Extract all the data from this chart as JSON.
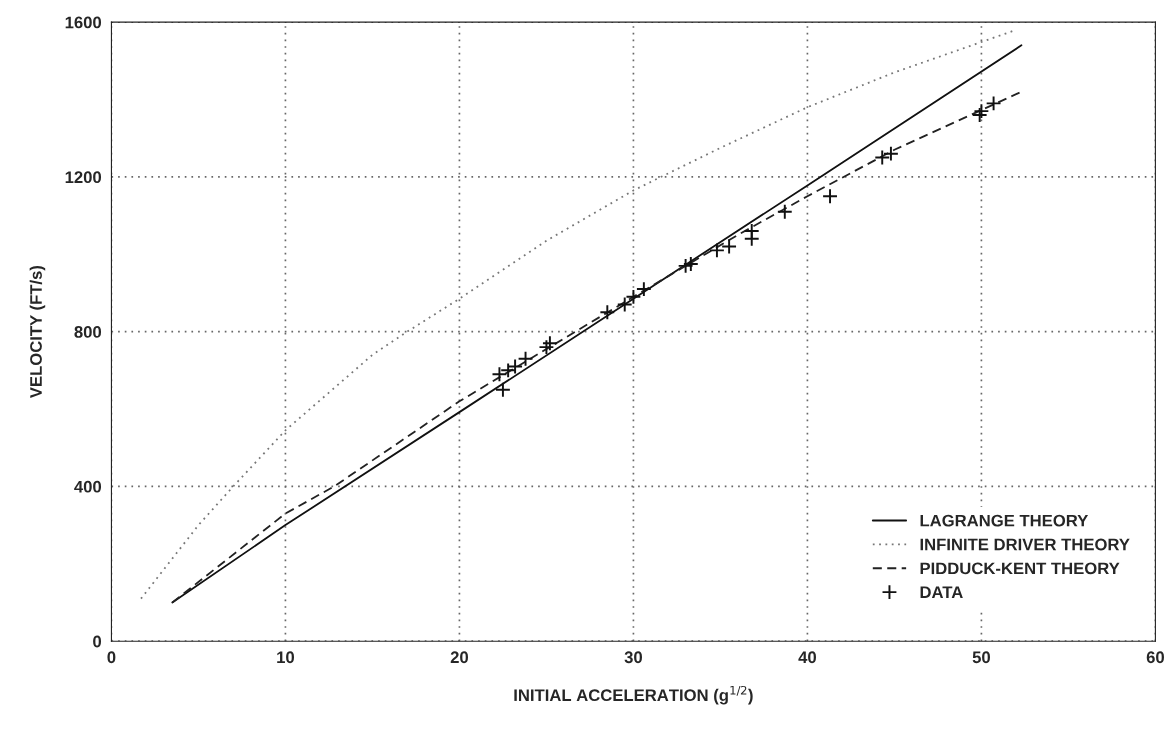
{
  "chart_data": {
    "type": "line",
    "xlabel": "INITIAL ACCELERATION (g$^{1/2}$)",
    "ylabel": "VELOCITY (FT/s)",
    "xlim": [
      0,
      60
    ],
    "xticks": [
      0,
      10,
      20,
      30,
      40,
      50,
      60
    ],
    "ylim": [
      0,
      1600
    ],
    "yticks": [
      0,
      400,
      800,
      1200,
      1600
    ],
    "grid": true,
    "legend": "bottom right",
    "series": [
      {
        "name": "LAGRANGE THEORY",
        "line_style": "solid",
        "color": "#111111",
        "x": [
          3.5,
          10,
          20,
          30,
          40,
          52.3
        ],
        "values": [
          100,
          300,
          592,
          885,
          1178,
          1540
        ]
      },
      {
        "name": "INFINITE DRIVER THEORY",
        "line_style": "dotted",
        "color": "#777777",
        "x": [
          1.7,
          5,
          7,
          10,
          15,
          17,
          20,
          25,
          30,
          35,
          40,
          45,
          52
        ],
        "values": [
          110,
          300,
          400,
          545,
          740,
          800,
          885,
          1035,
          1165,
          1275,
          1380,
          1470,
          1580
        ]
      },
      {
        "name": "PIDDUCK-KENT THEORY",
        "line_style": "dashed",
        "color": "#222222",
        "x": [
          3.5,
          10,
          12.8,
          20,
          30,
          36,
          40,
          45,
          52.3
        ],
        "values": [
          100,
          330,
          400,
          620,
          890,
          1050,
          1150,
          1270,
          1420
        ]
      },
      {
        "name": "DATA",
        "type": "scatter",
        "marker": "cross",
        "color": "#111111",
        "x": [
          22.5,
          22.3,
          22.8,
          23.2,
          23.8,
          25,
          25.2,
          28.5,
          29.5,
          30,
          30.6,
          33,
          33.3,
          34.8,
          35.5,
          36.8,
          36.8,
          38.7,
          41.3,
          44.3,
          44.8,
          49.9,
          50,
          50.7
        ],
        "values": [
          650,
          690,
          700,
          710,
          730,
          760,
          770,
          850,
          870,
          890,
          910,
          970,
          975,
          1010,
          1020,
          1040,
          1060,
          1110,
          1150,
          1250,
          1260,
          1360,
          1370,
          1390
        ]
      }
    ]
  }
}
